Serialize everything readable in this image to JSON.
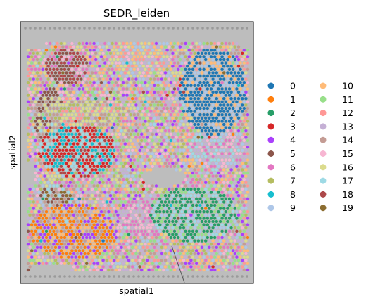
{
  "chart_data": {
    "type": "scatter",
    "subtype": "spatial-embedding",
    "title": "SEDR_leiden",
    "xlabel": "spatial1",
    "ylabel": "spatial2",
    "xticks": [],
    "yticks": [],
    "legend_position": "right",
    "legend_columns": 2,
    "clusters": [
      {
        "label": "0",
        "color": "#1f77b4"
      },
      {
        "label": "1",
        "color": "#ff7f0e"
      },
      {
        "label": "2",
        "color": "#279e68"
      },
      {
        "label": "3",
        "color": "#d62728"
      },
      {
        "label": "4",
        "color": "#aa40fc"
      },
      {
        "label": "5",
        "color": "#8c564b"
      },
      {
        "label": "6",
        "color": "#e377c2"
      },
      {
        "label": "7",
        "color": "#b5bd61"
      },
      {
        "label": "8",
        "color": "#17becf"
      },
      {
        "label": "9",
        "color": "#aec7e8"
      },
      {
        "label": "10",
        "color": "#ffbb78"
      },
      {
        "label": "11",
        "color": "#98df8a"
      },
      {
        "label": "12",
        "color": "#ff9896"
      },
      {
        "label": "13",
        "color": "#c5b0d5"
      },
      {
        "label": "14",
        "color": "#c49c94"
      },
      {
        "label": "15",
        "color": "#f7b6d2"
      },
      {
        "label": "16",
        "color": "#dbdb8d"
      },
      {
        "label": "17",
        "color": "#9edae5"
      },
      {
        "label": "18",
        "color": "#ad494a"
      },
      {
        "label": "19",
        "color": "#8c6d31"
      }
    ]
  }
}
